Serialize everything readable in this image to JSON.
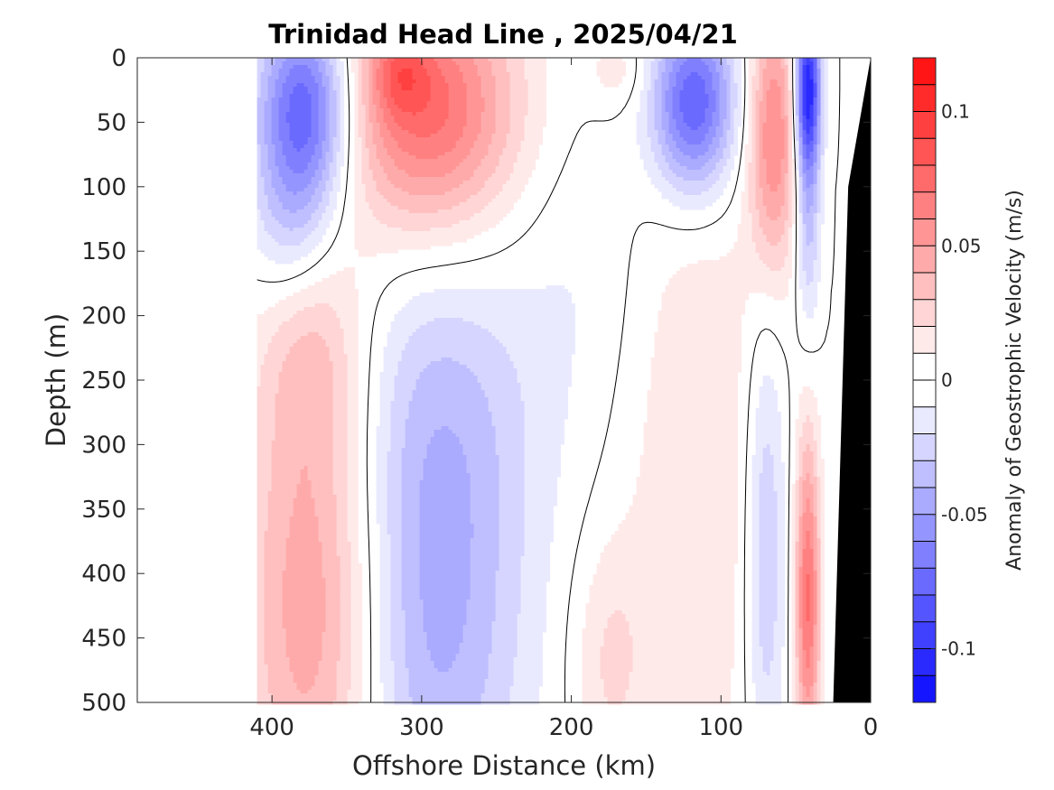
{
  "chart_data": {
    "type": "heatmap",
    "title": "Trinidad Head Line , 2025/04/21",
    "xlabel": "Offshore Distance (km)",
    "ylabel": "Depth (m)",
    "xlim": [
      490,
      0
    ],
    "ylim": [
      0,
      500
    ],
    "x_ticks": [
      400,
      300,
      200,
      100,
      0
    ],
    "y_ticks": [
      0,
      50,
      100,
      150,
      200,
      250,
      300,
      350,
      400,
      450,
      500
    ],
    "colorbar": {
      "label": "Anomaly of Geostrophic Velocity (m/s)",
      "range": [
        -0.12,
        0.12
      ],
      "step": 0.01,
      "ticks": [
        0.1,
        0.05,
        0,
        -0.05,
        -0.1
      ],
      "tick_labels": [
        "0.1",
        "0.05",
        "0",
        "-0.05",
        "-0.1"
      ]
    },
    "colors": {
      "positive": "#ff0000",
      "negative": "#0000ff",
      "neutral": "#ffffff",
      "land": "#000000"
    },
    "data_extent_x": [
      410,
      0
    ],
    "blobs": [
      {
        "x": 378,
        "z": 40,
        "sx": 22,
        "sz": 55,
        "v": -0.085
      },
      {
        "x": 388,
        "z": 130,
        "sx": 20,
        "sz": 45,
        "v": -0.025
      },
      {
        "x": 295,
        "z": 40,
        "sx": 42,
        "sz": 70,
        "v": 0.075
      },
      {
        "x": 315,
        "z": 10,
        "sx": 14,
        "sz": 25,
        "v": 0.03
      },
      {
        "x": 118,
        "z": 35,
        "sx": 20,
        "sz": 50,
        "v": -0.085
      },
      {
        "x": 65,
        "z": 60,
        "sx": 12,
        "sz": 75,
        "v": 0.06
      },
      {
        "x": 42,
        "z": 20,
        "sx": 6,
        "sz": 45,
        "v": -0.1
      },
      {
        "x": 42,
        "z": 110,
        "sx": 6,
        "sz": 70,
        "v": -0.04
      },
      {
        "x": 370,
        "z": 420,
        "sx": 35,
        "sz": 150,
        "v": 0.055
      },
      {
        "x": 372,
        "z": 230,
        "sx": 25,
        "sz": 60,
        "v": 0.02
      },
      {
        "x": 295,
        "z": 430,
        "sx": 45,
        "sz": 150,
        "v": -0.045
      },
      {
        "x": 285,
        "z": 260,
        "sx": 55,
        "sz": 90,
        "v": -0.015
      },
      {
        "x": 115,
        "z": 320,
        "sx": 35,
        "sz": 200,
        "v": 0.02
      },
      {
        "x": 175,
        "z": 470,
        "sx": 18,
        "sz": 70,
        "v": 0.02
      },
      {
        "x": 70,
        "z": 380,
        "sx": 10,
        "sz": 130,
        "v": -0.035
      },
      {
        "x": 42,
        "z": 420,
        "sx": 6,
        "sz": 90,
        "v": 0.07
      },
      {
        "x": 170,
        "z": 10,
        "sx": 14,
        "sz": 20,
        "v": 0.015
      },
      {
        "x": 190,
        "z": 150,
        "sx": 30,
        "sz": 90,
        "v": -0.008
      }
    ],
    "land": {
      "x_surface": 0,
      "x_at_100": 15,
      "x_at_500": 25
    }
  }
}
